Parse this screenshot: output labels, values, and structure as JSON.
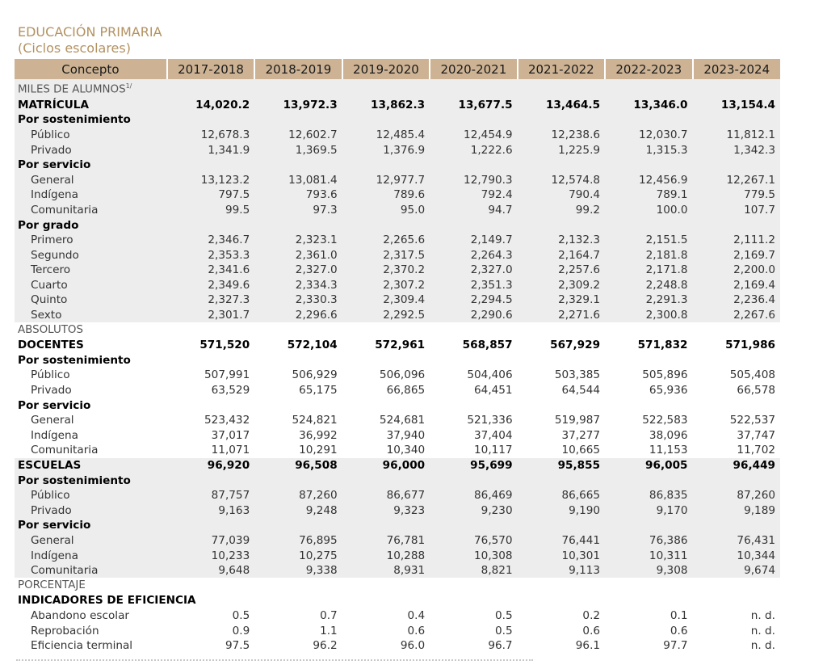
{
  "heading": {
    "title": "EDUCACIÓN PRIMARIA",
    "subtitle": "(Ciclos escolares)"
  },
  "header": [
    "Concepto",
    "2017-2018",
    "2018-2019",
    "2019-2020",
    "2020-2021",
    "2021-2022",
    "2022-2023",
    "2023-2024"
  ],
  "rows": [
    {
      "type": "section",
      "shade": true,
      "label": "MILES DE ALUMNOS",
      "sup": "1/",
      "values": []
    },
    {
      "type": "main",
      "shade": true,
      "label": "MATRÍCULA",
      "values": [
        "14,020.2",
        "13,972.3",
        "13,862.3",
        "13,677.5",
        "13,464.5",
        "13,346.0",
        "13,154.4"
      ]
    },
    {
      "type": "sub",
      "shade": true,
      "label": "Por sostenimiento",
      "values": []
    },
    {
      "type": "item",
      "shade": true,
      "label": "Público",
      "values": [
        "12,678.3",
        "12,602.7",
        "12,485.4",
        "12,454.9",
        "12,238.6",
        "12,030.7",
        "11,812.1"
      ]
    },
    {
      "type": "item",
      "shade": true,
      "label": "Privado",
      "values": [
        "1,341.9",
        "1,369.5",
        "1,376.9",
        "1,222.6",
        "1,225.9",
        "1,315.3",
        "1,342.3"
      ]
    },
    {
      "type": "sub",
      "shade": true,
      "label": "Por servicio",
      "values": []
    },
    {
      "type": "item",
      "shade": true,
      "label": "General",
      "values": [
        "13,123.2",
        "13,081.4",
        "12,977.7",
        "12,790.3",
        "12,574.8",
        "12,456.9",
        "12,267.1"
      ]
    },
    {
      "type": "item",
      "shade": true,
      "label": "Indígena",
      "values": [
        "797.5",
        "793.6",
        "789.6",
        "792.4",
        "790.4",
        "789.1",
        "779.5"
      ]
    },
    {
      "type": "item",
      "shade": true,
      "label": "Comunitaria",
      "values": [
        "99.5",
        "97.3",
        "95.0",
        "94.7",
        "99.2",
        "100.0",
        "107.7"
      ]
    },
    {
      "type": "sub",
      "shade": true,
      "label": "Por grado",
      "values": []
    },
    {
      "type": "item",
      "shade": true,
      "label": "Primero",
      "values": [
        "2,346.7",
        "2,323.1",
        "2,265.6",
        "2,149.7",
        "2,132.3",
        "2,151.5",
        "2,111.2"
      ]
    },
    {
      "type": "item",
      "shade": true,
      "label": "Segundo",
      "values": [
        "2,353.3",
        "2,361.0",
        "2,317.5",
        "2,264.3",
        "2,164.7",
        "2,181.8",
        "2,169.7"
      ]
    },
    {
      "type": "item",
      "shade": true,
      "label": "Tercero",
      "values": [
        "2,341.6",
        "2,327.0",
        "2,370.2",
        "2,327.0",
        "2,257.6",
        "2,171.8",
        "2,200.0"
      ]
    },
    {
      "type": "item",
      "shade": true,
      "label": "Cuarto",
      "values": [
        "2,349.6",
        "2,334.3",
        "2,307.2",
        "2,351.3",
        "2,309.2",
        "2,248.8",
        "2,169.4"
      ]
    },
    {
      "type": "item",
      "shade": true,
      "label": "Quinto",
      "values": [
        "2,327.3",
        "2,330.3",
        "2,309.4",
        "2,294.5",
        "2,329.1",
        "2,291.3",
        "2,236.4"
      ]
    },
    {
      "type": "item",
      "shade": true,
      "label": "Sexto",
      "values": [
        "2,301.7",
        "2,296.6",
        "2,292.5",
        "2,290.6",
        "2,271.6",
        "2,300.8",
        "2,267.6"
      ]
    },
    {
      "type": "section",
      "shade": false,
      "label": "ABSOLUTOS",
      "values": []
    },
    {
      "type": "main",
      "shade": false,
      "label": "DOCENTES",
      "values": [
        "571,520",
        "572,104",
        "572,961",
        "568,857",
        "567,929",
        "571,832",
        "571,986"
      ]
    },
    {
      "type": "sub",
      "shade": false,
      "label": "Por sostenimiento",
      "values": []
    },
    {
      "type": "item",
      "shade": false,
      "label": "Público",
      "values": [
        "507,991",
        "506,929",
        "506,096",
        "504,406",
        "503,385",
        "505,896",
        "505,408"
      ]
    },
    {
      "type": "item",
      "shade": false,
      "label": "Privado",
      "values": [
        "63,529",
        "65,175",
        "66,865",
        "64,451",
        "64,544",
        "65,936",
        "66,578"
      ]
    },
    {
      "type": "sub",
      "shade": false,
      "label": "Por servicio",
      "values": []
    },
    {
      "type": "item",
      "shade": false,
      "label": "General",
      "values": [
        "523,432",
        "524,821",
        "524,681",
        "521,336",
        "519,987",
        "522,583",
        "522,537"
      ]
    },
    {
      "type": "item",
      "shade": false,
      "label": "Indígena",
      "values": [
        "37,017",
        "36,992",
        "37,940",
        "37,404",
        "37,277",
        "38,096",
        "37,747"
      ]
    },
    {
      "type": "item",
      "shade": false,
      "label": "Comunitaria",
      "values": [
        "11,071",
        "10,291",
        "10,340",
        "10,117",
        "10,665",
        "11,153",
        "11,702"
      ]
    },
    {
      "type": "main",
      "shade": true,
      "label": "ESCUELAS",
      "values": [
        "96,920",
        "96,508",
        "96,000",
        "95,699",
        "95,855",
        "96,005",
        "96,449"
      ]
    },
    {
      "type": "sub",
      "shade": true,
      "label": "Por sostenimiento",
      "values": []
    },
    {
      "type": "item",
      "shade": true,
      "label": "Público",
      "values": [
        "87,757",
        "87,260",
        "86,677",
        "86,469",
        "86,665",
        "86,835",
        "87,260"
      ]
    },
    {
      "type": "item",
      "shade": true,
      "label": "Privado",
      "values": [
        "9,163",
        "9,248",
        "9,323",
        "9,230",
        "9,190",
        "9,170",
        "9,189"
      ]
    },
    {
      "type": "sub",
      "shade": true,
      "label": "Por servicio",
      "values": []
    },
    {
      "type": "item",
      "shade": true,
      "label": "General",
      "values": [
        "77,039",
        "76,895",
        "76,781",
        "76,570",
        "76,441",
        "76,386",
        "76,431"
      ]
    },
    {
      "type": "item",
      "shade": true,
      "label": "Indígena",
      "values": [
        "10,233",
        "10,275",
        "10,288",
        "10,308",
        "10,301",
        "10,311",
        "10,344"
      ]
    },
    {
      "type": "item",
      "shade": true,
      "label": "Comunitaria",
      "values": [
        "9,648",
        "9,338",
        "8,931",
        "8,821",
        "9,113",
        "9,308",
        "9,674"
      ]
    },
    {
      "type": "section",
      "shade": false,
      "label": "PORCENTAJE",
      "values": []
    },
    {
      "type": "main",
      "shade": false,
      "label": "INDICADORES DE EFICIENCIA",
      "values": []
    },
    {
      "type": "item",
      "shade": false,
      "label": "Abandono escolar",
      "values": [
        "0.5",
        "0.7",
        "0.4",
        "0.5",
        "0.2",
        "0.1",
        "n. d."
      ]
    },
    {
      "type": "item",
      "shade": false,
      "label": "Reprobación",
      "values": [
        "0.9",
        "1.1",
        "0.6",
        "0.5",
        "0.6",
        "0.6",
        "n. d."
      ]
    },
    {
      "type": "item",
      "shade": false,
      "label": "Eficiencia terminal",
      "values": [
        "97.5",
        "96.2",
        "96.0",
        "96.7",
        "96.1",
        "97.7",
        "n. d."
      ]
    }
  ]
}
